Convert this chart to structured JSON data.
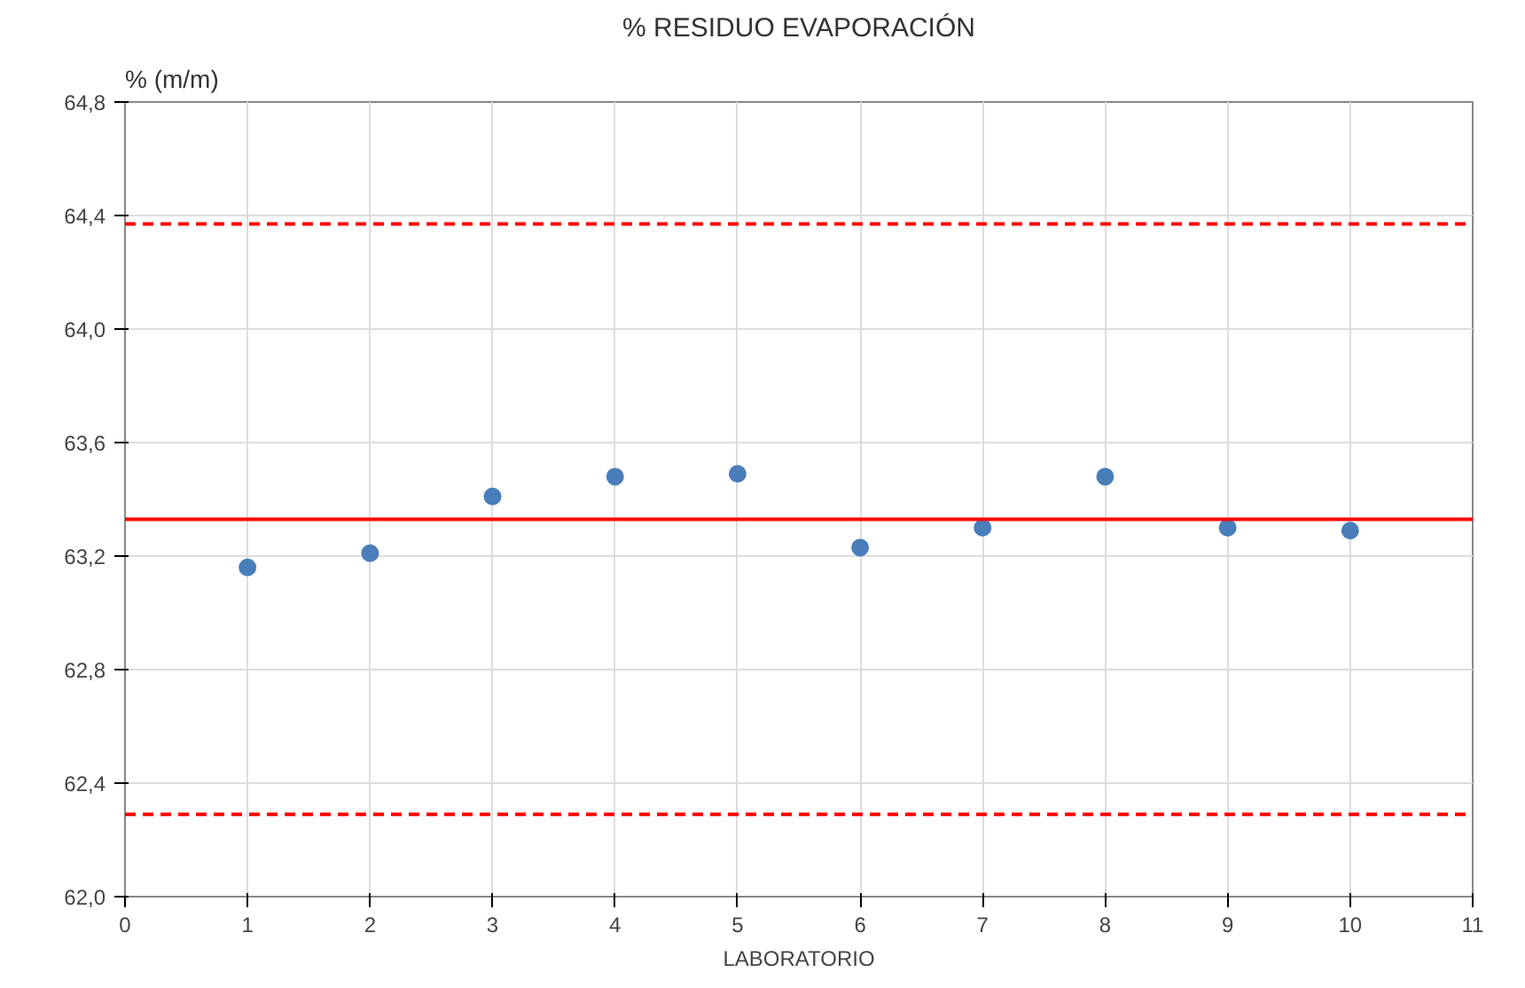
{
  "chart_data": {
    "type": "scatter",
    "title": "% RESIDUO EVAPORACIÓN",
    "xlabel": "LABORATORIO",
    "ylabel": "% (m/m)",
    "x": [
      1,
      2,
      3,
      4,
      5,
      6,
      7,
      8,
      9,
      10
    ],
    "series": [
      {
        "color": "#4a7ebb",
        "values": [
          63.16,
          63.21,
          63.41,
          63.48,
          63.49,
          63.23,
          63.3,
          63.48,
          63.3,
          63.29
        ]
      }
    ],
    "marker": "circle",
    "grid": true,
    "xlim": [
      0,
      11
    ],
    "xticks": [
      0,
      1,
      2,
      3,
      4,
      5,
      6,
      7,
      8,
      9,
      10,
      11
    ],
    "ylim": [
      62.0,
      64.8
    ],
    "yticks": [
      {
        "value": 62.0,
        "label": "62,0"
      },
      {
        "value": 62.4,
        "label": "62,4"
      },
      {
        "value": 62.8,
        "label": "62,8"
      },
      {
        "value": 63.2,
        "label": "63,2"
      },
      {
        "value": 63.6,
        "label": "63,6"
      },
      {
        "value": 64.0,
        "label": "64,0"
      },
      {
        "value": 64.4,
        "label": "64,4"
      },
      {
        "value": 64.8,
        "label": "64,8"
      }
    ],
    "ref_lines": [
      {
        "axis": "y",
        "value": 63.33,
        "color": "#ff0000",
        "line_style": "solid"
      },
      {
        "axis": "y",
        "value": 64.37,
        "color": "#ff0000",
        "line_style": "dashed"
      },
      {
        "axis": "y",
        "value": 62.29,
        "color": "#ff0000",
        "line_style": "dashed"
      }
    ]
  }
}
